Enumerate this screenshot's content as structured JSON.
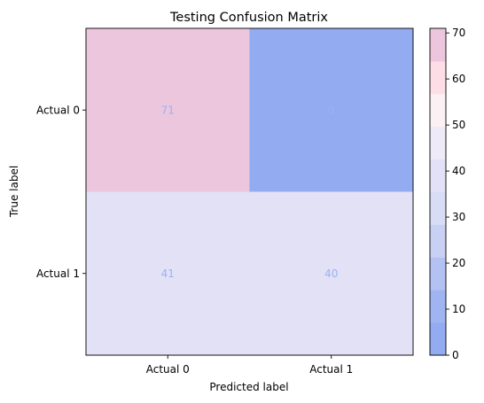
{
  "chart_data": {
    "type": "heatmap",
    "title": "Testing Confusion Matrix",
    "xlabel": "Predicted label",
    "ylabel": "True label",
    "x_categories": [
      "Actual 0",
      "Actual 1"
    ],
    "y_categories": [
      "Actual 0",
      "Actual 1"
    ],
    "values": [
      [
        71,
        0
      ],
      [
        41,
        40
      ]
    ],
    "value_label_color": "#9bb3f3",
    "colorbar": {
      "range": [
        0,
        71
      ],
      "ticks": [
        0,
        10,
        20,
        30,
        40,
        50,
        60,
        70
      ],
      "colors": [
        "#92abf1",
        "#a0b4f2",
        "#b3c2f2",
        "#c8d0f3",
        "#d8dcf5",
        "#e2e1f5",
        "#eeeaf7",
        "#fbf1f4",
        "#fddde6",
        "#ebc6dc"
      ]
    },
    "grid": false
  }
}
